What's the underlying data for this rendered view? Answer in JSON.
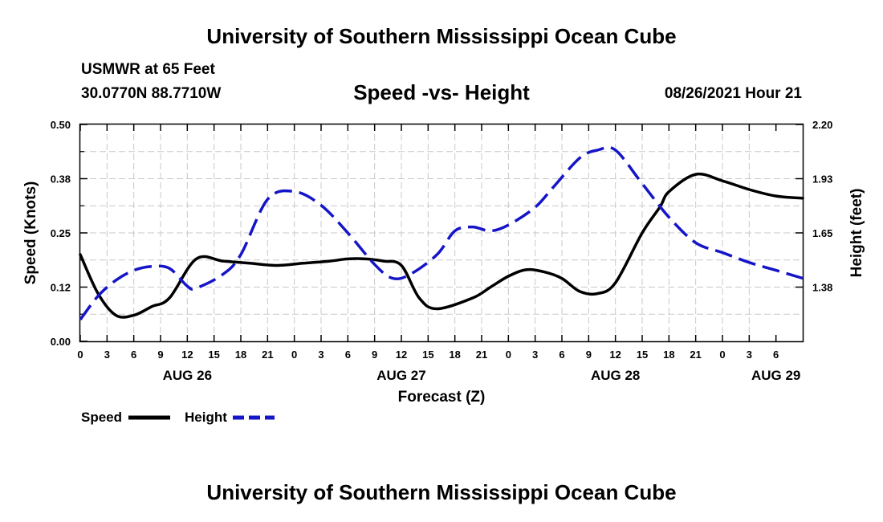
{
  "header": {
    "title_top": "University of Southern Mississippi Ocean Cube",
    "title_bottom": "University of Southern Mississippi Ocean Cube",
    "station": "USMWR at 65 Feet",
    "coords": "30.0770N  88.7710W",
    "chart_title": "Speed -vs- Height",
    "datetime": "08/26/2021 Hour 21"
  },
  "colors": {
    "speed": "#000000",
    "height": "#1515c8",
    "grid": "#c8c8c8"
  },
  "chart_data": {
    "type": "line",
    "title": "Speed -vs- Height",
    "xlabel": "Forecast (Z)",
    "ylabel_left": "Speed (Knots)",
    "ylabel_right": "Height (feet)",
    "x_range_hours": [
      0,
      81
    ],
    "x_tick_labels": [
      "0",
      "3",
      "6",
      "9",
      "12",
      "15",
      "18",
      "21",
      "0",
      "3",
      "6",
      "9",
      "12",
      "15",
      "18",
      "21",
      "0",
      "3",
      "6",
      "9",
      "12",
      "15",
      "18",
      "21",
      "0",
      "3",
      "6"
    ],
    "date_labels": [
      {
        "hour": 12,
        "label": "AUG 26"
      },
      {
        "hour": 36,
        "label": "AUG 27"
      },
      {
        "hour": 60,
        "label": "AUG 28"
      },
      {
        "hour": 78,
        "label": "AUG 29"
      }
    ],
    "ylim_left": [
      0,
      0.5
    ],
    "yticks_left": [
      "0.00",
      "0.12",
      "0.25",
      "0.38",
      "0.50"
    ],
    "ylim_right": [
      1.1,
      2.2
    ],
    "yticks_right": [
      {
        "value": 1.375,
        "label": "1.38"
      },
      {
        "value": 1.65,
        "label": "1.65"
      },
      {
        "value": 1.925,
        "label": "1.93"
      },
      {
        "value": 2.2,
        "label": "2.20"
      }
    ],
    "series": [
      {
        "name": "Speed",
        "style": "solid",
        "axis": "left",
        "x": [
          0,
          2,
          4,
          6,
          8,
          10,
          13,
          16,
          19,
          22,
          25,
          28,
          30,
          32,
          34,
          36,
          38,
          40,
          44,
          46,
          48,
          50,
          52,
          54,
          56,
          58,
          60,
          63,
          65,
          66,
          69,
          72,
          75,
          78,
          81
        ],
        "values": [
          0.2,
          0.11,
          0.06,
          0.06,
          0.08,
          0.1,
          0.19,
          0.185,
          0.18,
          0.175,
          0.18,
          0.185,
          0.19,
          0.19,
          0.185,
          0.175,
          0.1,
          0.075,
          0.1,
          0.125,
          0.15,
          0.165,
          0.16,
          0.145,
          0.115,
          0.11,
          0.135,
          0.25,
          0.31,
          0.345,
          0.385,
          0.37,
          0.35,
          0.335,
          0.33
        ]
      },
      {
        "name": "Height",
        "style": "dashed",
        "axis": "right",
        "x": [
          0,
          2,
          4,
          6,
          8,
          10,
          12,
          13,
          16,
          18,
          21,
          24,
          27,
          30,
          33,
          35,
          37,
          40,
          42,
          44,
          46,
          48,
          51,
          53,
          56,
          58,
          60,
          63,
          66,
          69,
          72,
          75,
          78,
          81
        ],
        "values": [
          1.21,
          1.33,
          1.41,
          1.46,
          1.48,
          1.47,
          1.38,
          1.37,
          1.44,
          1.54,
          1.82,
          1.86,
          1.79,
          1.65,
          1.49,
          1.42,
          1.44,
          1.54,
          1.66,
          1.68,
          1.66,
          1.69,
          1.78,
          1.88,
          2.03,
          2.07,
          2.07,
          1.9,
          1.73,
          1.6,
          1.55,
          1.5,
          1.46,
          1.42
        ]
      }
    ],
    "legend": [
      {
        "label": "Speed",
        "style": "solid"
      },
      {
        "label": "Height",
        "style": "dashed"
      }
    ]
  }
}
